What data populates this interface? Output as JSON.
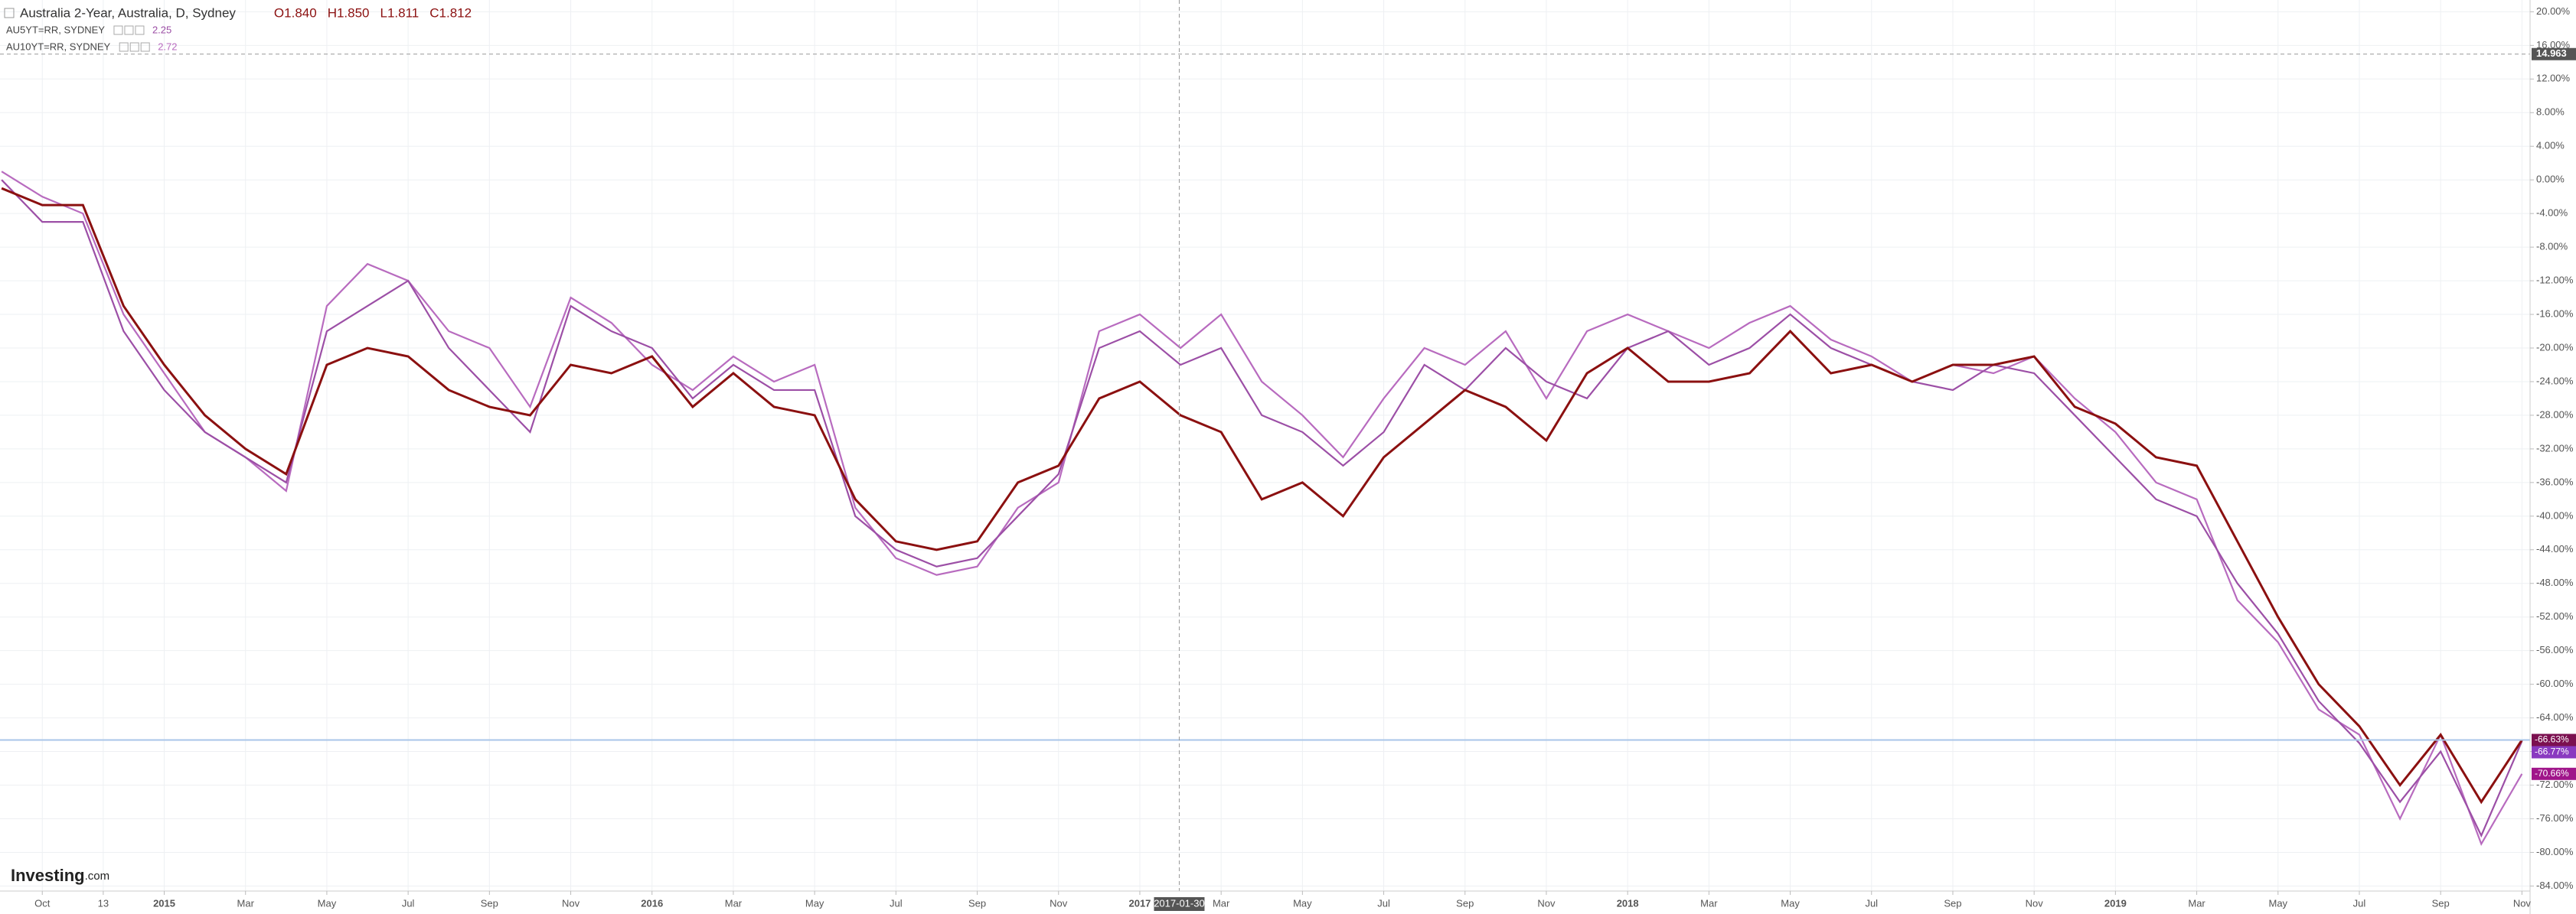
{
  "chart_data": {
    "type": "line",
    "title": "Australia 2-Year, Australia, D, Sydney",
    "ohlc": [
      "O1.840",
      "H1.850",
      "L1.811",
      "C1.812"
    ],
    "x": [
      0,
      1,
      2,
      3,
      4,
      5,
      6,
      7,
      8,
      9,
      10,
      11,
      12,
      13,
      14,
      15,
      16,
      17,
      18,
      19,
      20,
      21,
      22,
      23,
      24,
      25,
      26,
      27,
      28,
      29,
      30,
      31,
      32,
      33,
      34,
      35,
      36,
      37,
      38,
      39,
      40,
      41,
      42,
      43,
      44,
      45,
      46,
      47,
      48,
      49,
      50,
      51,
      52,
      53,
      54,
      55,
      56,
      57,
      58,
      59,
      60,
      61,
      62
    ],
    "series": [
      {
        "name": "Australia 2-Year",
        "color": "#8b1010",
        "last_label": "-66.63%",
        "badge_color": "#7b1050",
        "values": [
          -1,
          -3,
          -3,
          -15,
          -22,
          -28,
          -32,
          -35,
          -22,
          -20,
          -21,
          -25,
          -27,
          -28,
          -22,
          -23,
          -21,
          -27,
          -23,
          -27,
          -28,
          -38,
          -43,
          -44,
          -43,
          -36,
          -34,
          -26,
          -24,
          -28,
          -30,
          -38,
          -36,
          -40,
          -33,
          -29,
          -25,
          -27,
          -31,
          -23,
          -20,
          -24,
          -24,
          -23,
          -18,
          -23,
          -22,
          -24,
          -22,
          -22,
          -21,
          -27,
          -29,
          -33,
          -34,
          -43,
          -52,
          -60,
          -65,
          -72,
          -66,
          -74,
          -66.63
        ]
      },
      {
        "name": "AU5YT=RR, SYDNEY",
        "legend_value": "2.25",
        "color": "#9c4fa6",
        "last_label": "-66.77%",
        "badge_color": "#8a3ac0",
        "values": [
          0,
          -5,
          -5,
          -18,
          -25,
          -30,
          -33,
          -36,
          -18,
          -15,
          -12,
          -20,
          -25,
          -30,
          -15,
          -18,
          -20,
          -26,
          -22,
          -25,
          -25,
          -40,
          -44,
          -46,
          -45,
          -40,
          -35,
          -20,
          -18,
          -22,
          -20,
          -28,
          -30,
          -34,
          -30,
          -22,
          -25,
          -20,
          -24,
          -26,
          -20,
          -18,
          -22,
          -20,
          -16,
          -20,
          -22,
          -24,
          -25,
          -22,
          -23,
          -28,
          -33,
          -38,
          -40,
          -48,
          -54,
          -62,
          -67,
          -74,
          -68,
          -78,
          -66.77
        ]
      },
      {
        "name": "AU10YT=RR, SYDNEY",
        "legend_value": "2.72",
        "color": "#b86bbf",
        "last_label": "-70.66%",
        "badge_color": "#a0158a",
        "values": [
          1,
          -2,
          -4,
          -16,
          -23,
          -30,
          -33,
          -37,
          -15,
          -10,
          -12,
          -18,
          -20,
          -27,
          -14,
          -17,
          -22,
          -25,
          -21,
          -24,
          -22,
          -39,
          -45,
          -47,
          -46,
          -39,
          -36,
          -18,
          -16,
          -20,
          -16,
          -24,
          -28,
          -33,
          -26,
          -20,
          -22,
          -18,
          -26,
          -18,
          -16,
          -18,
          -20,
          -17,
          -15,
          -19,
          -21,
          -24,
          -22,
          -23,
          -21,
          -26,
          -30,
          -36,
          -38,
          -50,
          -55,
          -63,
          -66,
          -76,
          -66,
          -79,
          -70.66
        ]
      }
    ],
    "xlim": [
      -0.04,
      62.2
    ],
    "xticks": [
      {
        "value": 1,
        "label": "Oct"
      },
      {
        "value": 2.5,
        "label": "13"
      },
      {
        "value": 4,
        "label": "2015"
      },
      {
        "value": 6,
        "label": "Mar"
      },
      {
        "value": 8,
        "label": "May"
      },
      {
        "value": 10,
        "label": "Jul"
      },
      {
        "value": 12,
        "label": "Sep"
      },
      {
        "value": 14,
        "label": "Nov"
      },
      {
        "value": 16,
        "label": "2016"
      },
      {
        "value": 18,
        "label": "Mar"
      },
      {
        "value": 20,
        "label": "May"
      },
      {
        "value": 22,
        "label": "Jul"
      },
      {
        "value": 24,
        "label": "Sep"
      },
      {
        "value": 26,
        "label": "Nov"
      },
      {
        "value": 28,
        "label": "2017"
      },
      {
        "value": 30,
        "label": "Mar"
      },
      {
        "value": 32,
        "label": "May"
      },
      {
        "value": 34,
        "label": "Jul"
      },
      {
        "value": 36,
        "label": "Sep"
      },
      {
        "value": 38,
        "label": "Nov"
      },
      {
        "value": 40,
        "label": "2018"
      },
      {
        "value": 42,
        "label": "Mar"
      },
      {
        "value": 44,
        "label": "May"
      },
      {
        "value": 46,
        "label": "Jul"
      },
      {
        "value": 48,
        "label": "Sep"
      },
      {
        "value": 50,
        "label": "Nov"
      },
      {
        "value": 52,
        "label": "2019"
      },
      {
        "value": 54,
        "label": "Mar"
      },
      {
        "value": 56,
        "label": "May"
      },
      {
        "value": 58,
        "label": "Jul"
      },
      {
        "value": 60,
        "label": "Sep"
      },
      {
        "value": 62,
        "label": "Nov"
      }
    ],
    "ylim": [
      -84.6,
      21.4
    ],
    "yticks": [
      {
        "value": 20,
        "label": "20.00%"
      },
      {
        "value": 16,
        "label": "16.00%"
      },
      {
        "value": 12,
        "label": "12.00%"
      },
      {
        "value": 8,
        "label": "8.00%"
      },
      {
        "value": 4,
        "label": "4.00%"
      },
      {
        "value": 0,
        "label": "0.00%"
      },
      {
        "value": -4,
        "label": "-4.00%"
      },
      {
        "value": -8,
        "label": "-8.00%"
      },
      {
        "value": -12,
        "label": "-12.00%"
      },
      {
        "value": -16,
        "label": "-16.00%"
      },
      {
        "value": -20,
        "label": "-20.00%"
      },
      {
        "value": -24,
        "label": "-24.00%"
      },
      {
        "value": -28,
        "label": "-28.00%"
      },
      {
        "value": -32,
        "label": "-32.00%"
      },
      {
        "value": -36,
        "label": "-36.00%"
      },
      {
        "value": -40,
        "label": "-40.00%"
      },
      {
        "value": -44,
        "label": "-44.00%"
      },
      {
        "value": -48,
        "label": "-48.00%"
      },
      {
        "value": -52,
        "label": "-52.00%"
      },
      {
        "value": -56,
        "label": "-56.00%"
      },
      {
        "value": -60,
        "label": "-60.00%"
      },
      {
        "value": -64,
        "label": "-64.00%"
      },
      {
        "value": -68,
        "label": "-68.00%"
      },
      {
        "value": -72,
        "label": "-72.00%"
      },
      {
        "value": -76,
        "label": "-76.00%"
      },
      {
        "value": -80,
        "label": "-80.00%"
      },
      {
        "value": -84,
        "label": "-84.00%"
      }
    ],
    "grid": true,
    "crosshair": {
      "x": 28.97,
      "x_label": "2017-01-30",
      "y": 14.963,
      "y_label": "14.963"
    },
    "logo": "Investing",
    "logo_suffix": ".com"
  }
}
